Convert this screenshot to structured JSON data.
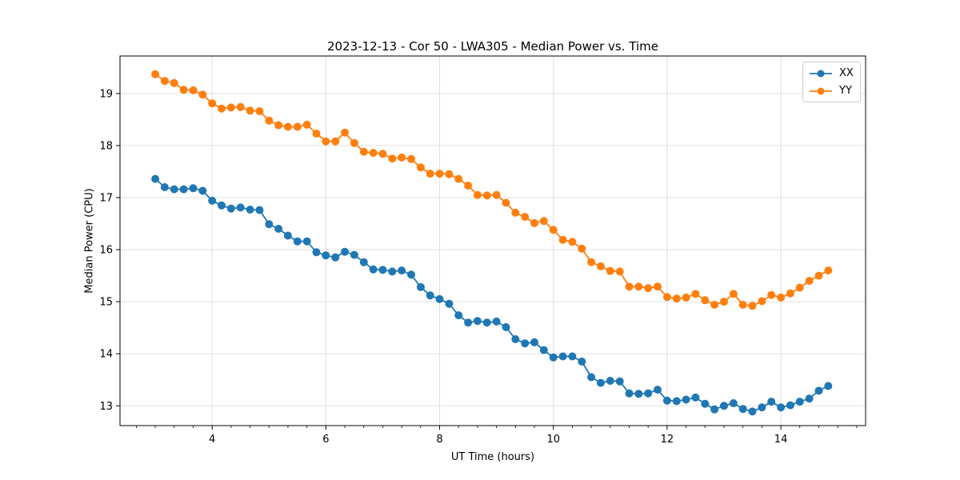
{
  "title": "2023-12-13 - Cor 50 - LWA305 - Median Power vs. Time",
  "chart_data": {
    "type": "line",
    "title": "2023-12-13 - Cor 50 - LWA305 - Median Power vs. Time",
    "xlabel": "UT Time (hours)",
    "ylabel": "Median Power (CPU)",
    "xlim": [
      2.38,
      15.49
    ],
    "ylim": [
      12.62,
      19.72
    ],
    "x_major_ticks": [
      4,
      6,
      8,
      10,
      12,
      14
    ],
    "x_minor_step": 0.33333,
    "y_major_ticks": [
      13,
      14,
      15,
      16,
      17,
      18,
      19
    ],
    "grid": true,
    "grid_color": "#e0e0e0",
    "legend_position": "upper right",
    "x": [
      3.0,
      3.167,
      3.333,
      3.5,
      3.667,
      3.833,
      4.0,
      4.167,
      4.333,
      4.5,
      4.667,
      4.833,
      5.0,
      5.167,
      5.333,
      5.5,
      5.667,
      5.833,
      6.0,
      6.167,
      6.333,
      6.5,
      6.667,
      6.833,
      7.0,
      7.167,
      7.333,
      7.5,
      7.667,
      7.833,
      8.0,
      8.167,
      8.333,
      8.5,
      8.667,
      8.833,
      9.0,
      9.167,
      9.333,
      9.5,
      9.667,
      9.833,
      10.0,
      10.167,
      10.333,
      10.5,
      10.667,
      10.833,
      11.0,
      11.167,
      11.333,
      11.5,
      11.667,
      11.833,
      12.0,
      12.167,
      12.333,
      12.5,
      12.667,
      12.833,
      13.0,
      13.167,
      13.333,
      13.5,
      13.667,
      13.833,
      14.0,
      14.167,
      14.333,
      14.5,
      14.667,
      14.833
    ],
    "series": [
      {
        "name": "XX",
        "color": "#1f77b4",
        "values": [
          17.36,
          17.2,
          17.16,
          17.16,
          17.18,
          17.13,
          16.94,
          16.85,
          16.79,
          16.81,
          16.77,
          16.76,
          16.49,
          16.4,
          16.27,
          16.16,
          16.16,
          15.95,
          15.89,
          15.85,
          15.96,
          15.9,
          15.76,
          15.62,
          15.61,
          15.58,
          15.6,
          15.52,
          15.28,
          15.12,
          15.05,
          14.96,
          14.74,
          14.6,
          14.63,
          14.6,
          14.62,
          14.51,
          14.28,
          14.2,
          14.22,
          14.07,
          13.93,
          13.95,
          13.95,
          13.85,
          13.55,
          13.44,
          13.48,
          13.47,
          13.24,
          13.23,
          13.24,
          13.31,
          13.1,
          13.09,
          13.12,
          13.16,
          13.04,
          12.93,
          13.0,
          13.05,
          12.94,
          12.89,
          12.97,
          13.08,
          12.97,
          13.01,
          13.08,
          13.14,
          13.29,
          13.38
        ]
      },
      {
        "name": "YY",
        "color": "#ff7f0e",
        "values": [
          19.37,
          19.24,
          19.2,
          19.07,
          19.06,
          18.98,
          18.81,
          18.71,
          18.73,
          18.74,
          18.67,
          18.66,
          18.48,
          18.39,
          18.36,
          18.36,
          18.4,
          18.23,
          18.08,
          18.08,
          18.25,
          18.05,
          17.88,
          17.86,
          17.84,
          17.75,
          17.77,
          17.74,
          17.58,
          17.46,
          17.46,
          17.45,
          17.36,
          17.23,
          17.05,
          17.04,
          17.05,
          16.9,
          16.71,
          16.63,
          16.51,
          16.55,
          16.38,
          16.19,
          16.15,
          16.02,
          15.76,
          15.68,
          15.59,
          15.58,
          15.29,
          15.29,
          15.26,
          15.29,
          15.09,
          15.06,
          15.08,
          15.15,
          15.03,
          14.94,
          15.0,
          15.15,
          14.94,
          14.92,
          15.01,
          15.13,
          15.08,
          15.16,
          15.27,
          15.4,
          15.5,
          15.6
        ]
      }
    ]
  }
}
